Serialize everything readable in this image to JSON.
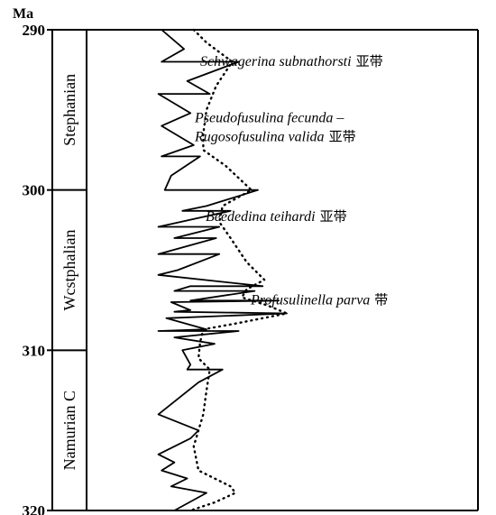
{
  "axis": {
    "unit": "Ma",
    "ticks": [
      {
        "label": "290",
        "value": 290
      },
      {
        "label": "300",
        "value": 300
      },
      {
        "label": "310",
        "value": 310
      },
      {
        "label": "320",
        "value": 320
      }
    ]
  },
  "stages": [
    {
      "name": "Stephanian",
      "top": 290,
      "bottom": 300
    },
    {
      "name": "Westphalian",
      "display": "Wcstphalian",
      "top": 300,
      "bottom": 310
    },
    {
      "name": "Namurian C",
      "top": 310,
      "bottom": 320
    }
  ],
  "zones": [
    {
      "lines": [
        "Schwagerina subnathorsti"
      ],
      "suffix": "亚带",
      "age": 291.9
    },
    {
      "lines": [
        "Pseudofusulina fecunda –",
        "Rugosofusulina valida"
      ],
      "suffix": "亚带",
      "age": 296
    },
    {
      "lines": [
        "Beededina teihardi"
      ],
      "suffix": "亚带",
      "age": 301.6
    },
    {
      "lines": [
        "Profusulinella parva"
      ],
      "suffix": "带",
      "age": 306.8
    }
  ],
  "chart_data": {
    "type": "line",
    "title": "",
    "ylabel": "Ma",
    "ylim": [
      290,
      320
    ],
    "y_direction": "down",
    "x_axis": "relative amplitude (unlabelled)",
    "series": [
      {
        "style": "solid",
        "points": [
          [
            0.22,
            290.0
          ],
          [
            0.36,
            291.2
          ],
          [
            0.22,
            292.0
          ],
          [
            0.7,
            292.0
          ],
          [
            0.38,
            293.2
          ],
          [
            0.52,
            294.0
          ],
          [
            0.2,
            294.0
          ],
          [
            0.4,
            295.2
          ],
          [
            0.22,
            296.0
          ],
          [
            0.42,
            297.2
          ],
          [
            0.22,
            297.9
          ],
          [
            0.46,
            297.9
          ],
          [
            0.28,
            299.1
          ],
          [
            0.24,
            300.0
          ],
          [
            0.82,
            300.0
          ],
          [
            0.5,
            301.0
          ],
          [
            0.35,
            301.3
          ],
          [
            0.65,
            301.3
          ],
          [
            0.2,
            302.3
          ],
          [
            0.58,
            302.3
          ],
          [
            0.3,
            303.0
          ],
          [
            0.56,
            303.0
          ],
          [
            0.2,
            304.0
          ],
          [
            0.58,
            304.0
          ],
          [
            0.32,
            305.0
          ],
          [
            0.2,
            305.3
          ],
          [
            0.85,
            306.0
          ],
          [
            0.4,
            306.0
          ],
          [
            0.3,
            306.3
          ],
          [
            0.8,
            306.3
          ],
          [
            0.4,
            306.9
          ],
          [
            0.95,
            306.9
          ],
          [
            0.28,
            307.0
          ],
          [
            0.4,
            307.5
          ],
          [
            0.3,
            307.6
          ],
          [
            1.0,
            307.7
          ],
          [
            0.25,
            308.0
          ],
          [
            0.5,
            308.7
          ],
          [
            0.2,
            308.8
          ],
          [
            0.7,
            308.8
          ],
          [
            0.3,
            309.2
          ],
          [
            0.55,
            309.6
          ],
          [
            0.35,
            310.0
          ],
          [
            0.4,
            310.9
          ],
          [
            0.38,
            311.2
          ],
          [
            0.6,
            311.2
          ],
          [
            0.45,
            312.0
          ],
          [
            0.2,
            314.0
          ],
          [
            0.45,
            315.0
          ],
          [
            0.4,
            315.5
          ],
          [
            0.2,
            316.5
          ],
          [
            0.3,
            317.0
          ],
          [
            0.22,
            317.5
          ],
          [
            0.38,
            318.0
          ],
          [
            0.28,
            318.5
          ],
          [
            0.5,
            318.9
          ],
          [
            0.3,
            320.0
          ]
        ]
      },
      {
        "style": "dotted",
        "points": [
          [
            0.42,
            290.0
          ],
          [
            0.5,
            290.8
          ],
          [
            0.66,
            292.0
          ],
          [
            0.56,
            293.5
          ],
          [
            0.5,
            295.0
          ],
          [
            0.48,
            296.5
          ],
          [
            0.48,
            297.5
          ],
          [
            0.62,
            298.5
          ],
          [
            0.78,
            300.0
          ],
          [
            0.6,
            301.0
          ],
          [
            0.58,
            302.0
          ],
          [
            0.65,
            303.0
          ],
          [
            0.75,
            304.5
          ],
          [
            0.86,
            305.6
          ],
          [
            0.75,
            306.2
          ],
          [
            0.72,
            306.7
          ],
          [
            0.88,
            307.2
          ],
          [
            1.0,
            307.7
          ],
          [
            0.7,
            308.3
          ],
          [
            0.48,
            308.7
          ],
          [
            0.46,
            309.5
          ],
          [
            0.45,
            310.5
          ],
          [
            0.52,
            311.2
          ],
          [
            0.5,
            312.5
          ],
          [
            0.48,
            314.0
          ],
          [
            0.45,
            315.0
          ],
          [
            0.42,
            316.0
          ],
          [
            0.45,
            317.5
          ],
          [
            0.65,
            318.5
          ],
          [
            0.68,
            318.9
          ],
          [
            0.55,
            319.5
          ],
          [
            0.4,
            320.0
          ]
        ]
      }
    ]
  }
}
